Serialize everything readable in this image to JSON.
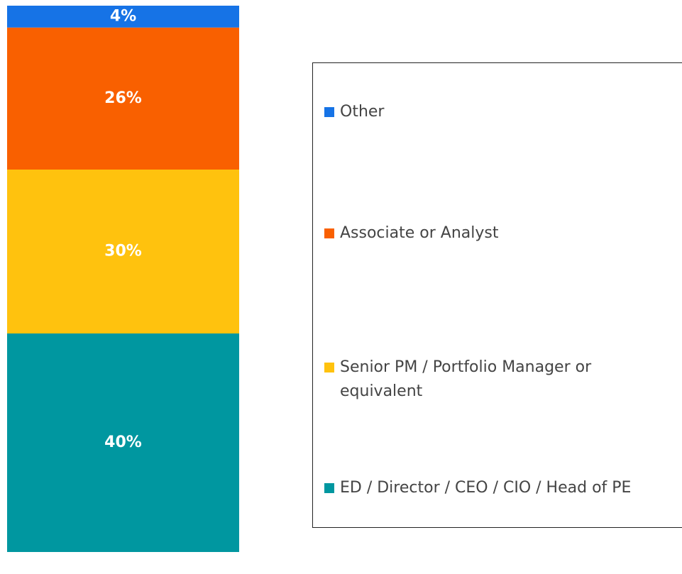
{
  "chart_data": {
    "type": "stacked-bar",
    "categories": [
      null
    ],
    "ylim": [
      0,
      100
    ],
    "series": [
      {
        "name": "ED / Director / CEO / CIO / Head of PE",
        "color": "#0097a0",
        "values": [
          40
        ],
        "value_labels": [
          "40%"
        ]
      },
      {
        "name": "Senior PM / Portfolio Manager or equivalent",
        "color": "#ffc20e",
        "values": [
          30
        ],
        "value_labels": [
          "30%"
        ]
      },
      {
        "name": "Associate or Analyst",
        "color": "#f96000",
        "values": [
          26
        ],
        "value_labels": [
          "26%"
        ]
      },
      {
        "name": "Other",
        "color": "#1673e6",
        "values": [
          4
        ],
        "value_labels": [
          "4%"
        ]
      }
    ]
  }
}
